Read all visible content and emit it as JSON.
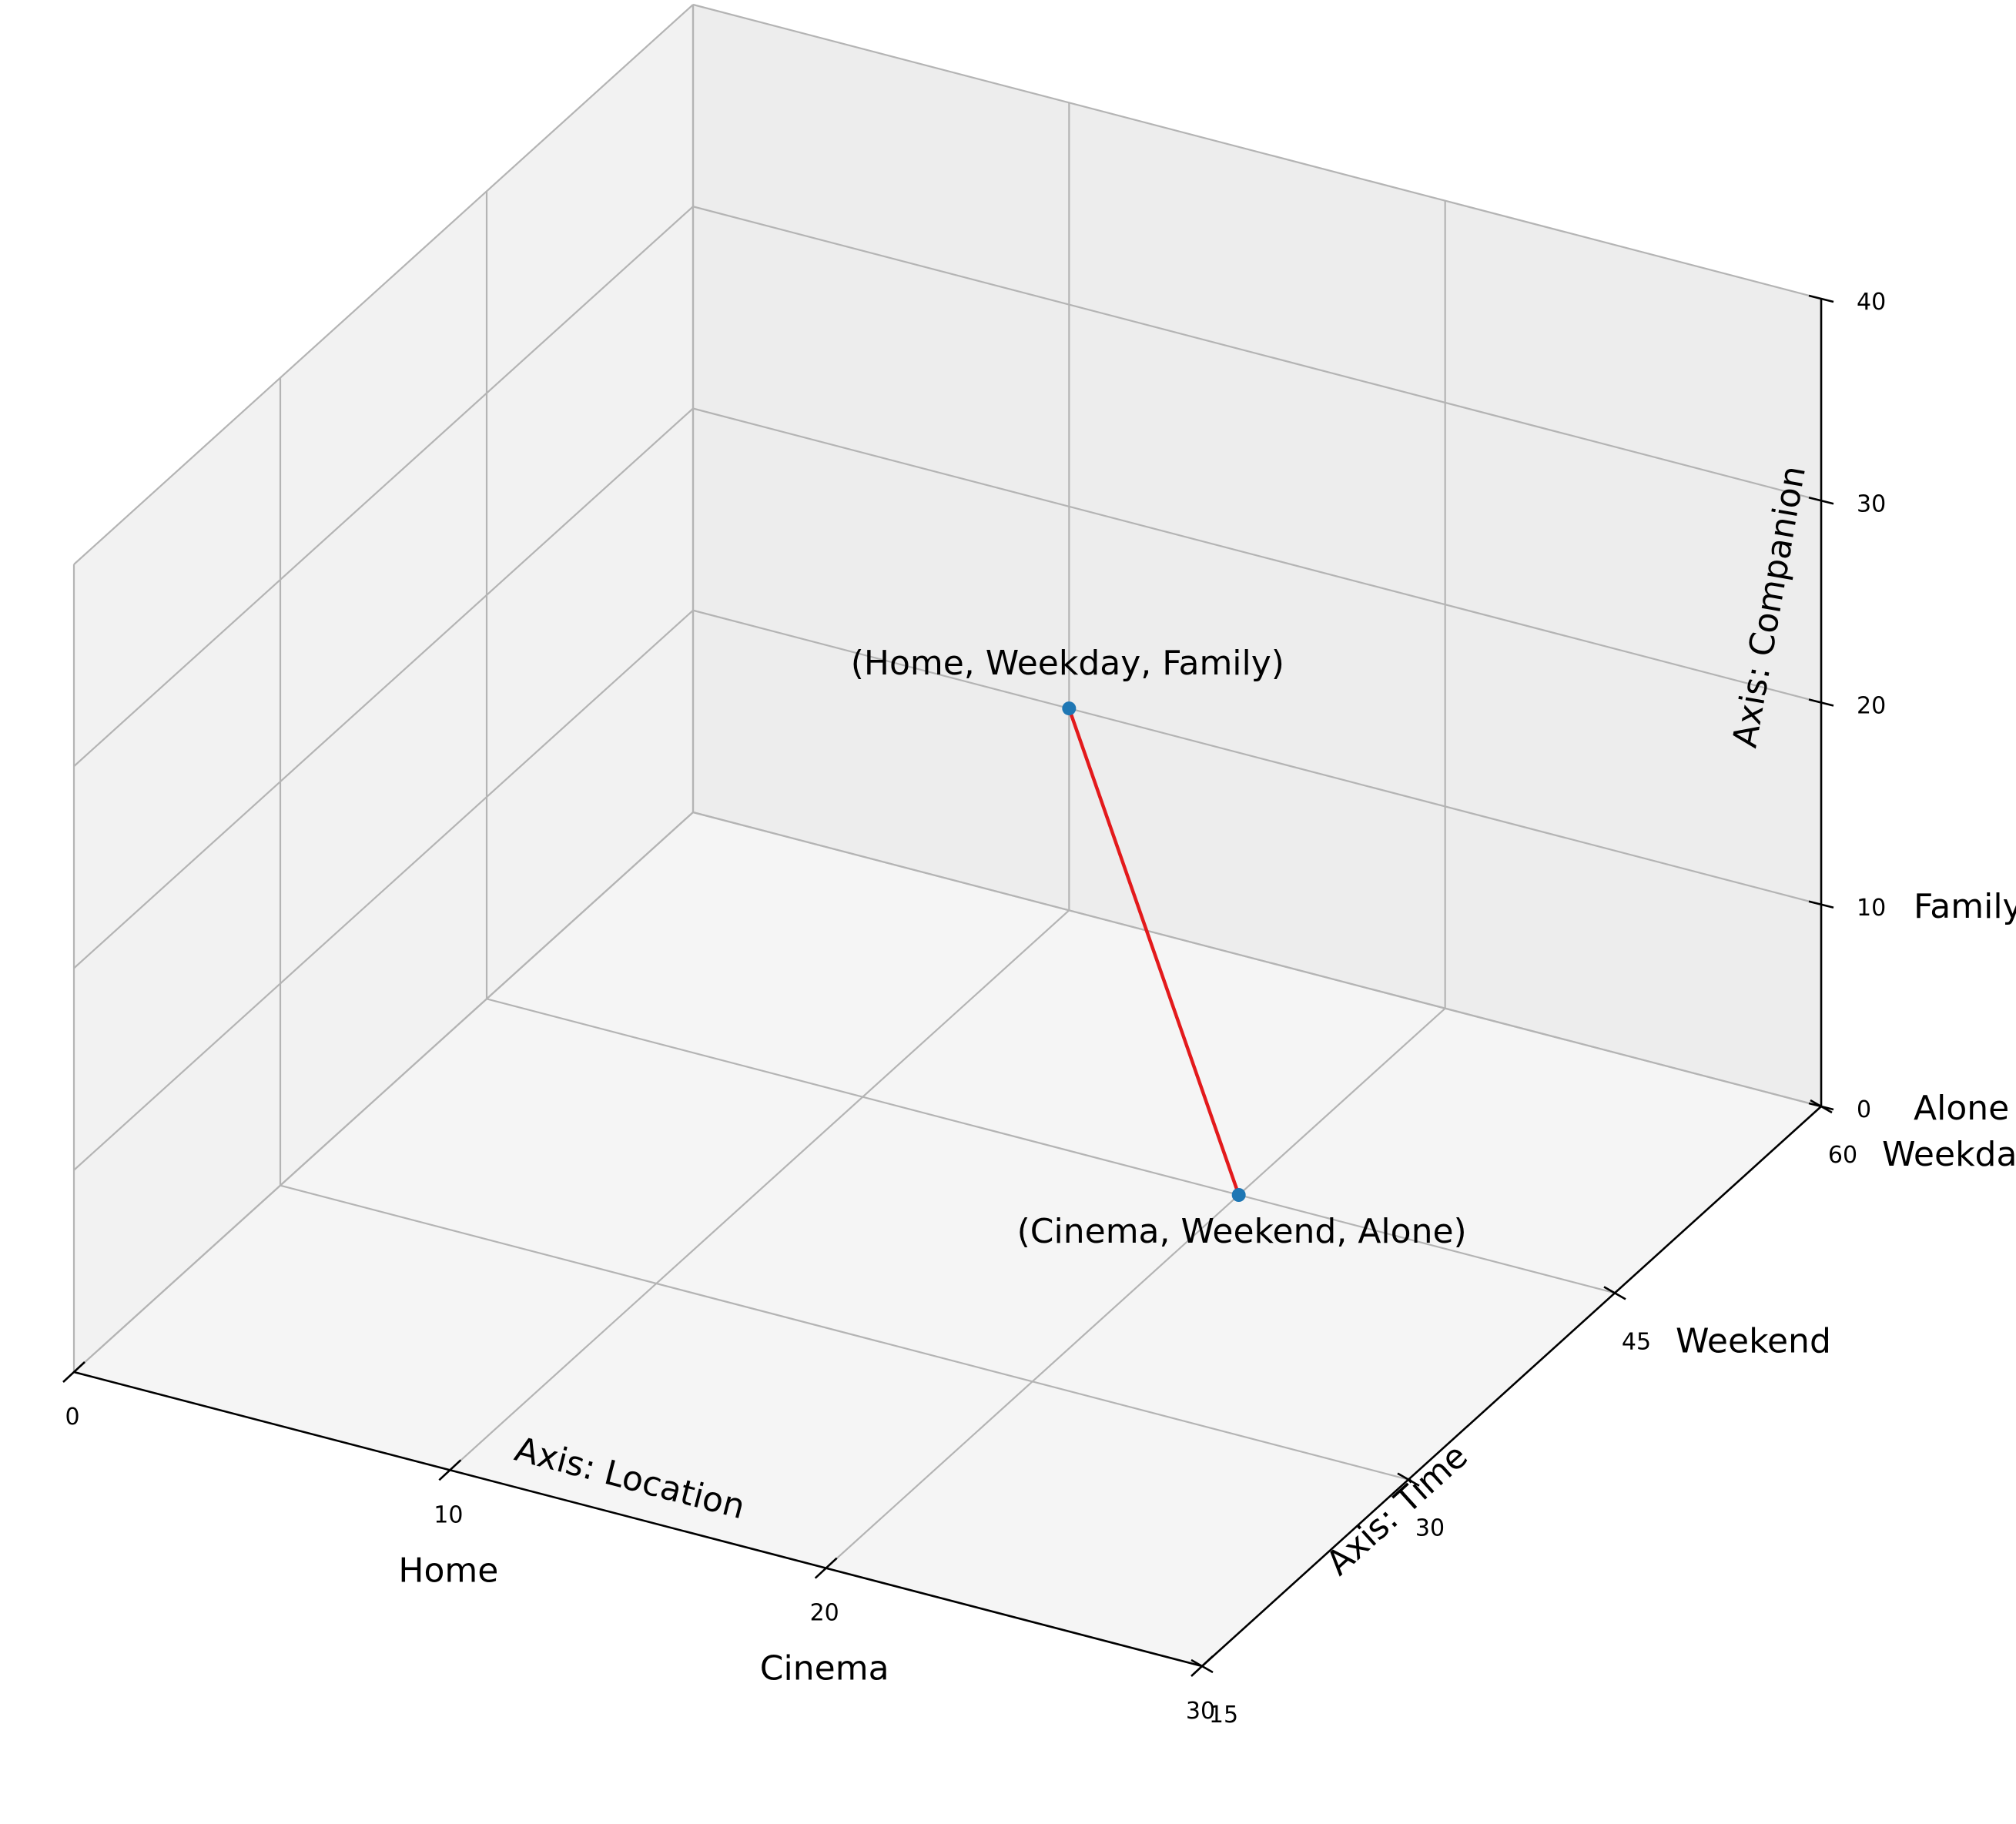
{
  "chart_data": {
    "type": "line3d",
    "title": "",
    "x_axis": {
      "label": "Axis: Location",
      "range": [
        0,
        30
      ],
      "ticks": [
        0,
        10,
        20,
        30
      ],
      "tick_labels": [
        "0",
        "10",
        "20",
        "30"
      ],
      "categories": [
        {
          "label": "Home",
          "value": 10
        },
        {
          "label": "Cinema",
          "value": 20
        }
      ]
    },
    "y_axis": {
      "label": "Axis: Time",
      "range": [
        15,
        60
      ],
      "ticks": [
        15,
        30,
        45,
        60
      ],
      "tick_labels": [
        "15",
        "30",
        "45",
        "60"
      ],
      "categories": [
        {
          "label": "Weekend",
          "value": 45
        },
        {
          "label": "Weekday",
          "value": 60
        }
      ]
    },
    "z_axis": {
      "label": "Axis: Companion",
      "range": [
        0,
        40
      ],
      "ticks": [
        0,
        10,
        20,
        30,
        40
      ],
      "tick_labels": [
        "0",
        "10",
        "20",
        "30",
        "40"
      ],
      "categories": [
        {
          "label": "Alone",
          "value": 0
        },
        {
          "label": "Family",
          "value": 10
        }
      ]
    },
    "grid": true,
    "points": [
      {
        "x": 10,
        "y": 60,
        "z": 10,
        "label": "(Home, Weekday, Family)",
        "color": "#1f77b4"
      },
      {
        "x": 20,
        "y": 45,
        "z": 0,
        "label": "(Cinema, Weekend, Alone)",
        "color": "#1f77b4"
      }
    ],
    "line_color": "#e31a1c"
  }
}
